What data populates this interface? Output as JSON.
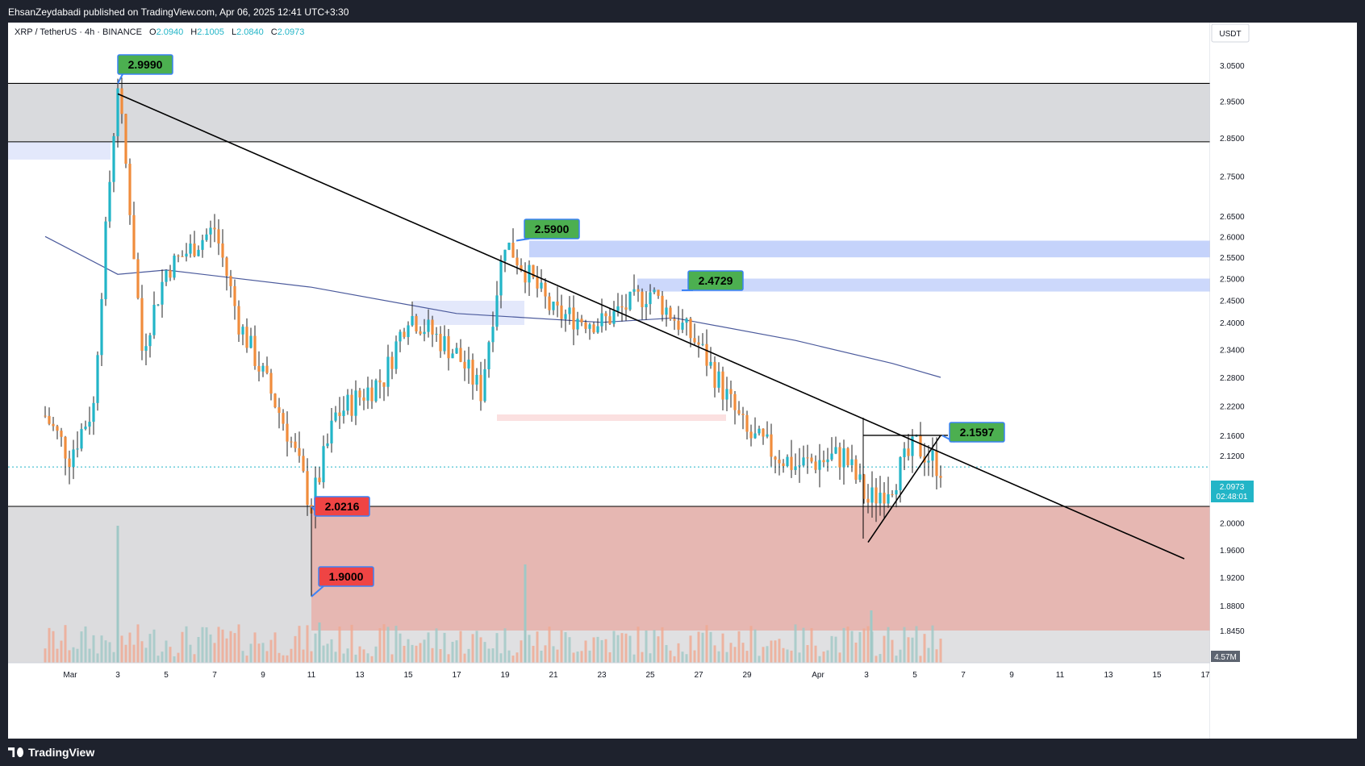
{
  "publisher": "EhsanZeydabadi published on TradingView.com, Apr 06, 2025 12:41 UTC+3:30",
  "legend": {
    "symbol": "XRP / TetherUS · 4h · BINANCE",
    "o_label": "O",
    "o_value": "2.0940",
    "h_label": "H",
    "h_value": "2.1005",
    "l_label": "L",
    "l_value": "2.0840",
    "c_label": "C",
    "c_value": "2.0973"
  },
  "axis": {
    "currency": "USDT",
    "price_ticks": [
      "3.0500",
      "2.9500",
      "2.8500",
      "2.7500",
      "2.6500",
      "2.6000",
      "2.5500",
      "2.5000",
      "2.4500",
      "2.4000",
      "2.3400",
      "2.2800",
      "2.2200",
      "2.1600",
      "2.1200",
      "2.0400",
      "2.0000",
      "1.9600",
      "1.9200",
      "1.8800",
      "1.8450"
    ],
    "time_ticks": [
      "Mar",
      "3",
      "5",
      "7",
      "9",
      "11",
      "13",
      "15",
      "17",
      "19",
      "21",
      "23",
      "25",
      "27",
      "29",
      "Apr",
      "3",
      "5",
      "7",
      "9",
      "11",
      "13",
      "15",
      "17"
    ],
    "current_price": "2.0973",
    "countdown": "02:48:01",
    "volume_label": "4.57M"
  },
  "annotations": {
    "high_2999": "2.9990",
    "high_2590": "2.5900",
    "level_24729": "2.4729",
    "level_21597": "2.1597",
    "low_20216": "2.0216",
    "low_19000": "1.9000"
  },
  "colors": {
    "bull": "#26a69a",
    "bull_candle": "#22b5c7",
    "bear": "#f08c3c",
    "ma": "#4b5a9c",
    "green_label": "#4caf50",
    "red_label": "#ef4444",
    "label_border": "#3b82f6"
  },
  "footer": {
    "brand": "TradingView"
  },
  "chart_data": {
    "type": "candlestick",
    "title": "XRP / TetherUS · 4h · BINANCE",
    "ylabel": "USDT",
    "ylim": [
      1.8,
      3.1
    ],
    "y_scale": "log",
    "grid": false,
    "x_range": [
      "Feb 28, 2025",
      "Apr 17, 2025"
    ],
    "last_candle": {
      "open": 2.094,
      "high": 2.1005,
      "low": 2.084,
      "close": 2.0973
    },
    "price_path": [
      {
        "x": "Feb 28",
        "y": 2.2
      },
      {
        "x": "Mar 1",
        "y": 2.12
      },
      {
        "x": "Mar 2",
        "y": 2.22
      },
      {
        "x": "Mar 3",
        "y": 2.999
      },
      {
        "x": "Mar 4",
        "y": 2.34
      },
      {
        "x": "Mar 5",
        "y": 2.52
      },
      {
        "x": "Mar 7",
        "y": 2.62
      },
      {
        "x": "Mar 8",
        "y": 2.4
      },
      {
        "x": "Mar 10",
        "y": 2.17
      },
      {
        "x": "Mar 11",
        "y": 2.0216
      },
      {
        "x": "Mar 12",
        "y": 2.2
      },
      {
        "x": "Mar 14",
        "y": 2.28
      },
      {
        "x": "Mar 15",
        "y": 2.42
      },
      {
        "x": "Mar 17",
        "y": 2.33
      },
      {
        "x": "Mar 18",
        "y": 2.25
      },
      {
        "x": "Mar 19",
        "y": 2.59
      },
      {
        "x": "Mar 21",
        "y": 2.42
      },
      {
        "x": "Mar 23",
        "y": 2.4
      },
      {
        "x": "Mar 25",
        "y": 2.47
      },
      {
        "x": "Mar 27",
        "y": 2.35
      },
      {
        "x": "Mar 29",
        "y": 2.16
      },
      {
        "x": "Mar 31",
        "y": 2.1
      },
      {
        "x": "Apr 2",
        "y": 2.12
      },
      {
        "x": "Apr 3",
        "y": 2.03
      },
      {
        "x": "Apr 4",
        "y": 2.07
      },
      {
        "x": "Apr 5",
        "y": 2.14
      },
      {
        "x": "Apr 6",
        "y": 2.0973
      }
    ],
    "moving_average": [
      {
        "x": "Feb 28",
        "y": 2.6
      },
      {
        "x": "Mar 3",
        "y": 2.51
      },
      {
        "x": "Mar 5",
        "y": 2.52
      },
      {
        "x": "Mar 11",
        "y": 2.48
      },
      {
        "x": "Mar 17",
        "y": 2.42
      },
      {
        "x": "Mar 23",
        "y": 2.4
      },
      {
        "x": "Mar 26",
        "y": 2.41
      },
      {
        "x": "Mar 31",
        "y": 2.36
      },
      {
        "x": "Apr 4",
        "y": 2.31
      },
      {
        "x": "Apr 6",
        "y": 2.28
      }
    ],
    "trendlines": [
      {
        "name": "descending resistance",
        "from": {
          "x": "Mar 3",
          "y": 2.97
        },
        "to": {
          "x": "Apr 15",
          "y": 1.97
        }
      },
      {
        "name": "rising support",
        "from": {
          "x": "Apr 3",
          "y": 1.955
        },
        "to": {
          "x": "Apr 6",
          "y": 2.16
        }
      }
    ],
    "zones": [
      {
        "type": "supply",
        "from": 2.84,
        "to": 2.999
      },
      {
        "type": "demand",
        "from": 1.9,
        "to": 2.0216
      },
      {
        "type": "resistance",
        "from": 2.55,
        "to": 2.59
      },
      {
        "type": "resistance",
        "from": 2.47,
        "to": 2.5
      }
    ],
    "horizontal_levels": [
      2.999,
      2.84,
      2.0216
    ]
  }
}
